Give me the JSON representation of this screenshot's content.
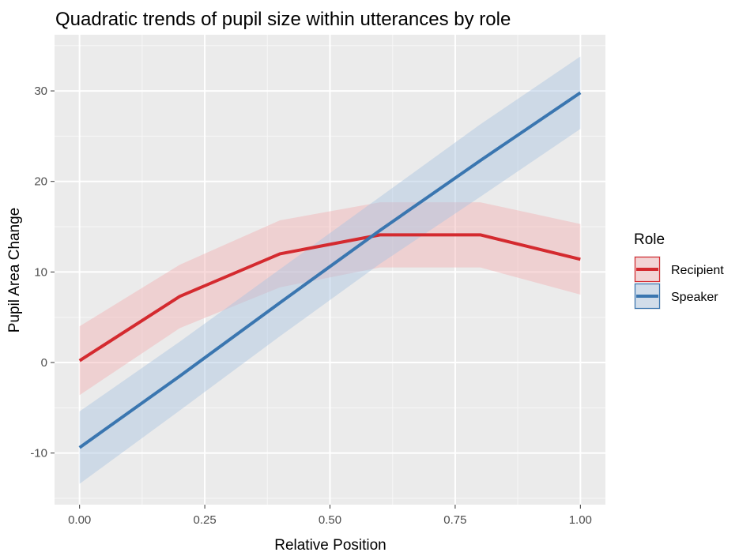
{
  "chart_data": {
    "type": "line",
    "title": "Quadratic trends of pupil size within utterances by role",
    "xlabel": "Relative Position",
    "ylabel": "Pupil Area Change",
    "xlim": [
      -0.05,
      1.05
    ],
    "ylim": [
      -15.7,
      36.2
    ],
    "x_ticks": [
      0,
      0.25,
      0.5,
      0.75,
      1.0
    ],
    "x_tick_labels": [
      "0.00",
      "0.25",
      "0.50",
      "0.75",
      "1.00"
    ],
    "x_minor_ticks": [
      0.125,
      0.375,
      0.625,
      0.875
    ],
    "y_ticks": [
      -10,
      0,
      10,
      20,
      30
    ],
    "y_tick_labels": [
      "-10",
      "0",
      "10",
      "20",
      "30"
    ],
    "y_minor_ticks": [
      -15,
      -5,
      5,
      15,
      25,
      35
    ],
    "grid": true,
    "legend": {
      "title": "Role",
      "position": "right"
    },
    "series": [
      {
        "name": "Recipient",
        "color": "#d42a2f",
        "fill": "#f1b0b2",
        "x": [
          0,
          0.2,
          0.4,
          0.6,
          0.8,
          1.0
        ],
        "values": [
          0.2,
          7.3,
          12.0,
          14.1,
          14.1,
          11.4
        ],
        "lower": [
          -3.6,
          3.8,
          8.3,
          10.5,
          10.5,
          7.5
        ],
        "upper": [
          4.0,
          10.8,
          15.7,
          17.7,
          17.7,
          15.3
        ]
      },
      {
        "name": "Speaker",
        "color": "#3a76b0",
        "fill": "#a9c4e1",
        "x": [
          0,
          0.2,
          0.4,
          0.6,
          0.8,
          1.0
        ],
        "values": [
          -9.4,
          -1.5,
          6.6,
          14.6,
          22.3,
          29.8
        ],
        "lower": [
          -13.4,
          -5.3,
          2.9,
          10.9,
          18.3,
          25.8
        ],
        "upper": [
          -5.4,
          2.3,
          10.3,
          18.3,
          26.3,
          33.8
        ]
      }
    ]
  }
}
